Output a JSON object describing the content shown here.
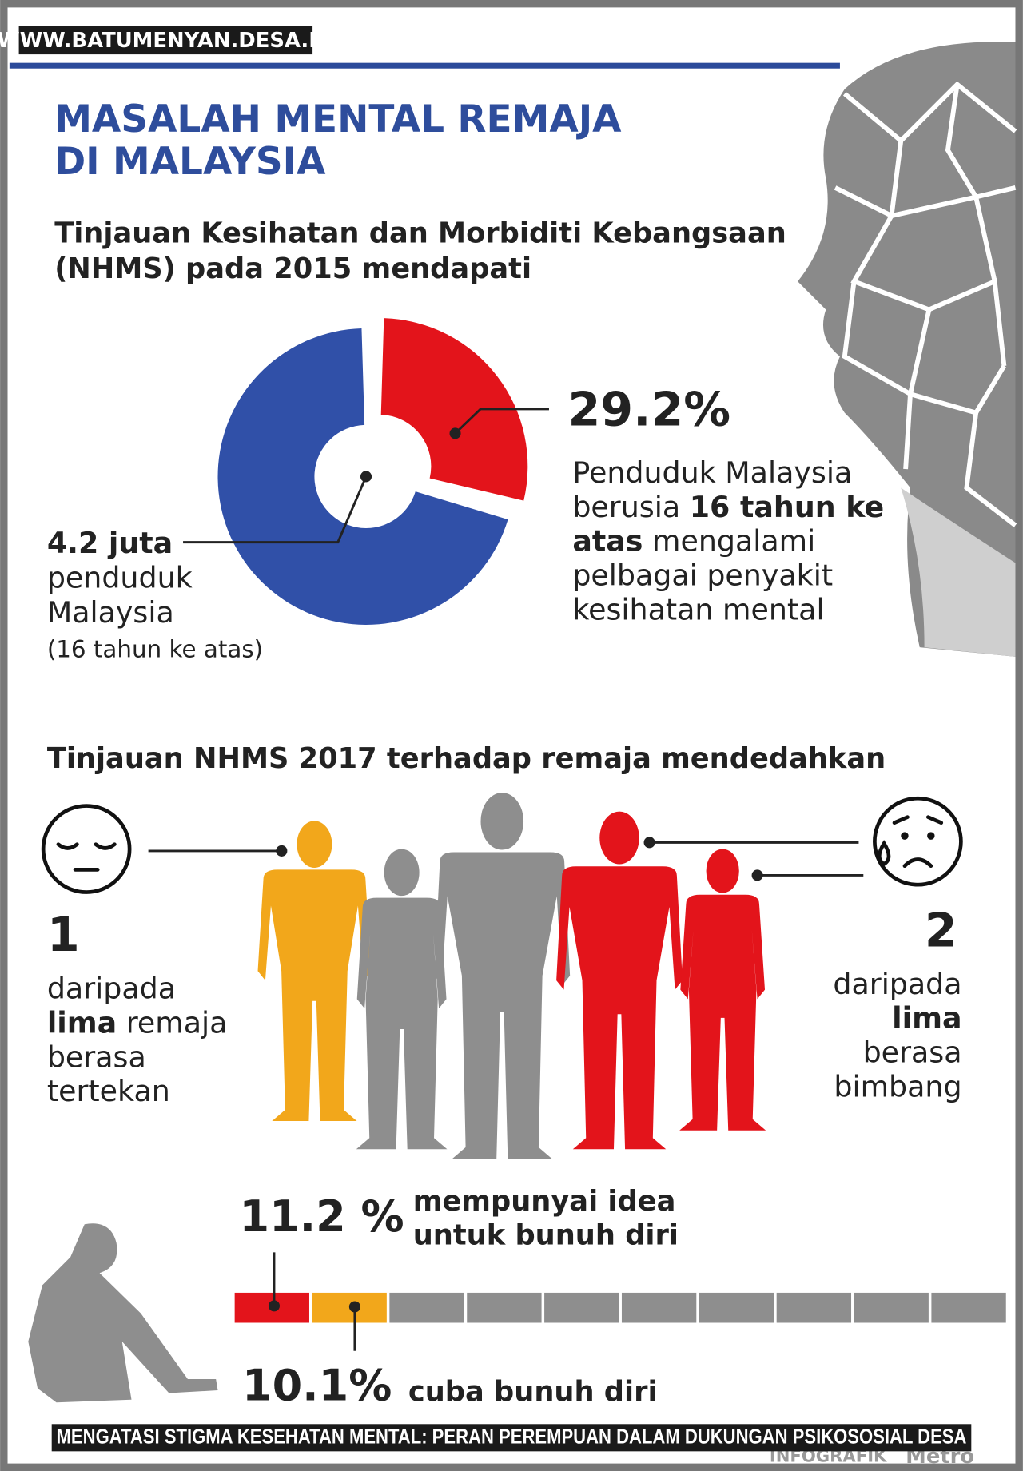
{
  "watermark": "WWW.BATUMENYAN.DESA.ID",
  "title": [
    "MASALAH MENTAL REMAJA",
    "DI MALAYSIA"
  ],
  "section1": {
    "heading": [
      "Tinjauan Kesihatan dan Morbiditi Kebangsaan",
      "(NHMS) pada 2015 mendapati"
    ],
    "percent": 29.2,
    "percent_label": "29.2%",
    "description": [
      [
        {
          "t": "Penduduk Malaysia"
        }
      ],
      [
        {
          "t": "berusia "
        },
        {
          "t": "16 tahun ke",
          "b": true
        }
      ],
      [
        {
          "t": "atas",
          "b": true
        },
        {
          "t": " mengalami"
        }
      ],
      [
        {
          "t": "pelbagai penyakit"
        }
      ],
      [
        {
          "t": "kesihatan mental"
        }
      ]
    ],
    "population": [
      [
        {
          "t": "4.2 juta",
          "b": true
        }
      ],
      [
        {
          "t": "penduduk"
        }
      ],
      [
        {
          "t": "Malaysia"
        }
      ],
      [
        {
          "t": "(16 tahun ke atas)"
        }
      ]
    ]
  },
  "section2": {
    "heading": "Tinjauan NHMS 2017 terhadap remaja mendedahkan",
    "left": {
      "number": "1",
      "lines": [
        [
          {
            "t": "daripada"
          }
        ],
        [
          {
            "t": "lima",
            "b": true
          },
          {
            "t": " remaja"
          }
        ],
        [
          {
            "t": "berasa"
          }
        ],
        [
          {
            "t": "tertekan"
          }
        ]
      ]
    },
    "right": {
      "number": "2",
      "lines": [
        [
          {
            "t": "daripada"
          }
        ],
        [
          {
            "t": "lima",
            "b": true
          }
        ],
        [
          {
            "t": "berasa"
          }
        ],
        [
          {
            "t": "bimbang"
          }
        ]
      ]
    }
  },
  "section3": {
    "idea_label": "11.2 %",
    "idea_text": [
      "mempunyai idea",
      "untuk bunuh diri"
    ],
    "attempt_label": "10.1%",
    "attempt_text": "cuba bunuh diri"
  },
  "footer": {
    "source": "INFOGRAFIK",
    "brand": "Metro"
  },
  "caption": "MENGATASI STIGMA KESEHATAN MENTAL: PERAN PEREMPUAN DALAM DUKUNGAN PSIKOSOSIAL DESA"
}
